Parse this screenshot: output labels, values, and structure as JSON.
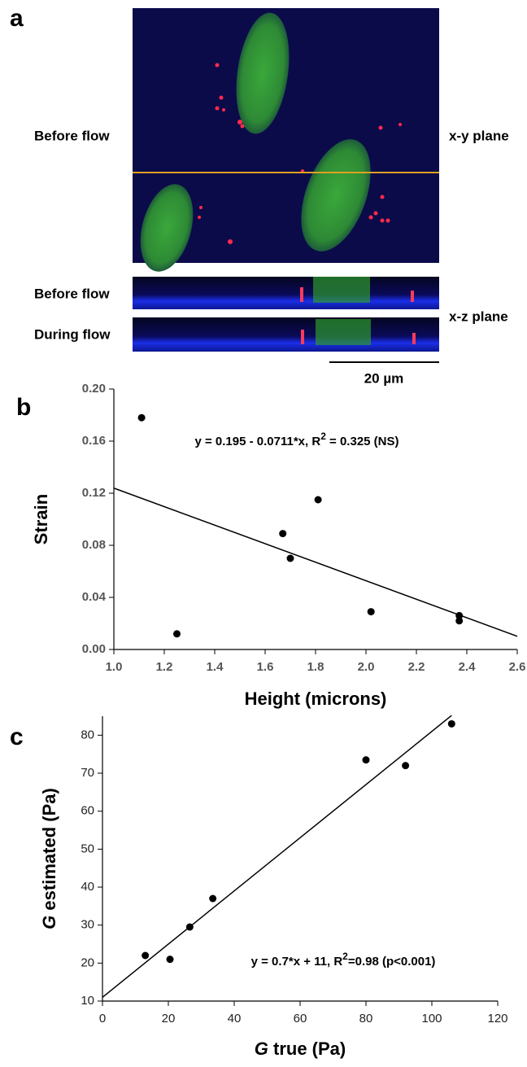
{
  "panel_a": {
    "label": "a",
    "xy_row_label": "Before flow",
    "xy_plane": "x-y plane",
    "xz_rows": [
      "Before flow",
      "During flow"
    ],
    "xz_plane": "x-z plane",
    "scale_bar": "20 µm"
  },
  "chart_data": [
    {
      "type": "scatter",
      "panel_label": "b",
      "x": [
        1.11,
        1.25,
        1.67,
        1.7,
        1.81,
        2.02,
        2.37,
        2.37
      ],
      "values": [
        0.178,
        0.012,
        0.089,
        0.07,
        0.115,
        0.029,
        0.026,
        0.022
      ],
      "color": "#000000",
      "fit": {
        "intercept": 0.195,
        "slope": -0.0711,
        "x_range": [
          1.0,
          2.6
        ]
      },
      "annotation": [
        "y = 0.195 - 0.0711*x, R",
        "2",
        " = 0.325 (NS)"
      ],
      "xlabel": [
        "Height (microns)"
      ],
      "ylabel": [
        "Strain"
      ],
      "italic_first": false,
      "xlim": [
        1.0,
        2.6
      ],
      "ylim": [
        0,
        0.2
      ],
      "xticks": [
        {
          "value": 1.0,
          "label": "1.0"
        },
        1.2,
        1.4,
        1.6,
        1.8,
        {
          "value": 2.0,
          "label": "2.0"
        },
        2.2,
        2.4,
        2.6
      ],
      "yticks": [
        {
          "value": 0,
          "label": "0.00"
        },
        0.04,
        {
          "value": 0.08,
          "label": "0.08"
        },
        0.12,
        0.16,
        {
          "value": 0.2,
          "label": "0.20"
        }
      ]
    },
    {
      "type": "scatter",
      "panel_label": "c",
      "x": [
        13,
        20.5,
        26.5,
        33.5,
        80,
        92,
        106
      ],
      "values": [
        22,
        21,
        29.5,
        37,
        73.5,
        72,
        83
      ],
      "color": "#000000",
      "fit": {
        "intercept": 11,
        "slope": 0.7,
        "x_range": [
          0,
          106
        ]
      },
      "annotation": [
        "y = 0.7*x + 11, R",
        "2",
        "=0.98 (p<0.001)"
      ],
      "xlabel": [
        "G",
        " true (Pa)"
      ],
      "ylabel": [
        "G",
        " estimated (Pa)"
      ],
      "italic_first": true,
      "xlim": [
        0,
        120
      ],
      "ylim": [
        10,
        85
      ],
      "xticks": [
        0,
        20,
        40,
        60,
        80,
        100,
        120
      ],
      "yticks": [
        10,
        20,
        30,
        40,
        50,
        60,
        70,
        80
      ]
    }
  ]
}
